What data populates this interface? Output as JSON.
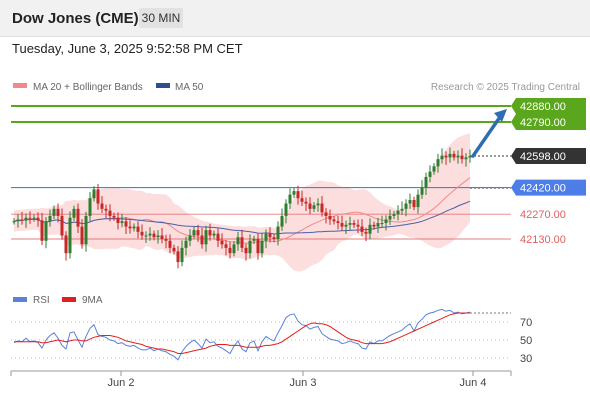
{
  "header": {
    "title": "Dow Jones (CME)",
    "timeframe": "30 MIN",
    "datetime": "Tuesday, June 3, 2025 9:52:58 PM CET"
  },
  "legend": {
    "items": [
      {
        "label": "MA 20 + Bollinger Bands",
        "color": "#f08a8a"
      },
      {
        "label": "MA 50",
        "color": "#2e4f8f"
      }
    ],
    "copyright": "Research © 2025 Trading Central"
  },
  "levels": [
    {
      "label": "42880.00",
      "value": 42880,
      "kind": "resistance",
      "color": "#5aa61c",
      "style": "solid",
      "badge": true
    },
    {
      "label": "42790.00",
      "value": 42790,
      "kind": "resistance",
      "color": "#5aa61c",
      "style": "solid",
      "badge": true
    },
    {
      "label": "42598.00",
      "value": 42598,
      "kind": "current",
      "color": "#333333",
      "style": "dotted",
      "badge": true
    },
    {
      "label": "42420.00",
      "value": 42420,
      "kind": "pivot",
      "color": "#4d7ee8",
      "style": "solid",
      "badge": true
    },
    {
      "label": "42270.00",
      "value": 42270,
      "kind": "support",
      "color": "#e06060",
      "style": "thin",
      "badge": false
    },
    {
      "label": "42130.00",
      "value": 42130,
      "kind": "support",
      "color": "#e06060",
      "style": "thin",
      "badge": false
    }
  ],
  "rsi_panel": {
    "legend": [
      {
        "label": "RSI",
        "color": "#5b82d6"
      },
      {
        "label": "9MA",
        "color": "#e02020"
      }
    ],
    "ticks": [
      "70",
      "50",
      "30"
    ]
  },
  "x_axis": {
    "ticks": [
      "Jun 2",
      "Jun 3",
      "Jun 4"
    ]
  },
  "colors": {
    "up": "#2f7d32",
    "down": "#c62828",
    "band_fill": "#fbd8d8",
    "ma20": "#f08a8a",
    "ma50": "#4a5fa8",
    "arrow": "#2f6db3"
  },
  "chart_data": {
    "type": "candlestick",
    "instrument": "Dow Jones (CME)",
    "interval": "30 MIN",
    "ylim": [
      41900,
      42930
    ],
    "resistance_levels": [
      42880,
      42790
    ],
    "pivot": 42420,
    "support_levels": [
      42270,
      42130
    ],
    "last_price": 42598,
    "forecast_arrow": {
      "from": 42598,
      "to": 42880
    },
    "close_path": [
      42230,
      42240,
      42235,
      42250,
      42245,
      42250,
      42235,
      42120,
      42230,
      42260,
      42300,
      42260,
      42150,
      42050,
      42250,
      42300,
      42200,
      42100,
      42260,
      42360,
      42410,
      42330,
      42300,
      42290,
      42260,
      42250,
      42220,
      42230,
      42200,
      42190,
      42200,
      42170,
      42150,
      42150,
      42160,
      42140,
      42150,
      42130,
      42120,
      42080,
      42060,
      42000,
      42080,
      42120,
      42150,
      42180,
      42150,
      42100,
      42180,
      42150,
      42160,
      42120,
      42100,
      42080,
      42050,
      42100,
      42140,
      42080,
      42050,
      42120,
      42130,
      42050,
      42120,
      42160,
      42140,
      42130,
      42200,
      42260,
      42330,
      42380,
      42400,
      42360,
      42340,
      42330,
      42300,
      42320,
      42330,
      42280,
      42260,
      42240,
      42230,
      42220,
      42200,
      42210,
      42220,
      42210,
      42200,
      42170,
      42160,
      42210,
      42200,
      42220,
      42220,
      42240,
      42260,
      42270,
      42290,
      42300,
      42330,
      42350,
      42310,
      42380,
      42420,
      42480,
      42510,
      42540,
      42580,
      42600,
      42590,
      42610,
      42590,
      42600,
      42580,
      42590,
      42598
    ],
    "rsi": [
      47,
      49,
      48,
      52,
      48,
      49,
      47,
      41,
      50,
      55,
      58,
      52,
      44,
      40,
      58,
      59,
      50,
      42,
      54,
      63,
      67,
      56,
      54,
      53,
      50,
      49,
      46,
      47,
      44,
      43,
      44,
      41,
      39,
      39,
      41,
      38,
      40,
      38,
      37,
      34,
      32,
      28,
      37,
      43,
      47,
      50,
      46,
      41,
      51,
      47,
      48,
      43,
      41,
      38,
      35,
      43,
      49,
      40,
      37,
      47,
      49,
      38,
      48,
      54,
      51,
      49,
      58,
      66,
      75,
      78,
      79,
      71,
      67,
      66,
      62,
      64,
      65,
      57,
      54,
      51,
      50,
      49,
      46,
      47,
      49,
      47,
      46,
      41,
      40,
      48,
      46,
      49,
      49,
      52,
      55,
      57,
      59,
      61,
      65,
      68,
      60,
      69,
      73,
      78,
      80,
      81,
      83,
      84,
      82,
      83,
      80,
      81,
      79,
      80,
      81
    ],
    "rsi_ma": [
      48,
      48,
      48,
      48,
      48,
      48,
      48,
      47,
      47,
      48,
      49,
      50,
      49,
      48,
      49,
      50,
      50,
      49,
      49,
      51,
      53,
      54,
      55,
      55,
      55,
      54,
      53,
      51,
      49,
      48,
      47,
      46,
      45,
      43,
      42,
      41,
      40,
      40,
      39,
      38,
      37,
      35,
      35,
      36,
      37,
      38,
      39,
      40,
      41,
      43,
      44,
      45,
      45,
      45,
      44,
      44,
      44,
      43,
      42,
      42,
      42,
      42,
      43,
      44,
      44,
      45,
      46,
      48,
      51,
      54,
      57,
      60,
      63,
      66,
      68,
      69,
      68,
      68,
      67,
      65,
      62,
      59,
      56,
      53,
      51,
      50,
      49,
      47,
      46,
      46,
      46,
      46,
      46,
      47,
      48,
      50,
      52,
      54,
      56,
      58,
      60,
      62,
      64,
      66,
      68,
      70,
      72,
      74,
      76,
      78,
      79,
      80,
      80,
      80,
      80
    ]
  }
}
